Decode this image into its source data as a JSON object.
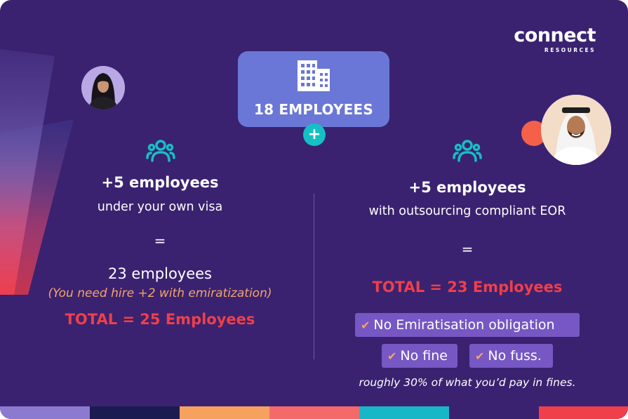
{
  "brand": {
    "logo_word": "connect",
    "logo_sub": "RESOURCES"
  },
  "top": {
    "label": "18 EMPLOYEES",
    "plus": "+"
  },
  "left": {
    "headline": "+5 employees",
    "subline": "under your own visa",
    "equals": "=",
    "result": "23 employees",
    "note": "(You need hire +2 with emiratization)",
    "total": "TOTAL = 25 Employees"
  },
  "right": {
    "headline": "+5 employees",
    "subline": "with outsourcing compliant EOR",
    "equals": "=",
    "total": "TOTAL = 23 Employees",
    "tags": [
      {
        "check": "✔",
        "text": "No Emiratisation obligation"
      },
      {
        "check": "✔",
        "text": "No fine"
      },
      {
        "check": "✔",
        "text": "No fuss."
      }
    ],
    "note": "roughly 30% of what you’d pay in fines."
  },
  "colors": {
    "background": "#3a2270",
    "box": "#6a77d6",
    "accent_teal": "#16bfc4",
    "accent_red": "#ef3f4a",
    "accent_orange": "#f4a36b",
    "tag": "#7657c3"
  },
  "icons": [
    "building-icon",
    "people-icon",
    "check-icon"
  ],
  "bottom_bar_colors": [
    "#8b7ad0",
    "#1b1b52",
    "#f6a25e",
    "#f46a6a",
    "#18b7c8",
    "#3a2270",
    "#ef3f4a"
  ]
}
